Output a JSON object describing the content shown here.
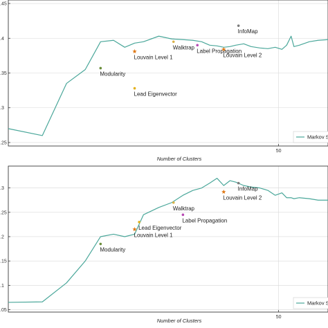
{
  "chart_data": [
    {
      "type": "line",
      "title": "",
      "xlabel": "Number of Clusters",
      "ylabel": "",
      "xscale": "log",
      "xlim": [
        2,
        90
      ],
      "ylim": [
        0.245,
        0.455
      ],
      "grid": true,
      "legend": "bottom-right",
      "x_tick_labels": [
        {
          "value": 50,
          "label": "50"
        }
      ],
      "y_tick_labels": [
        {
          "value": 0.25,
          "label": ".25"
        },
        {
          "value": 0.3,
          "label": ".3"
        },
        {
          "value": 0.35,
          "label": ".35"
        },
        {
          "value": 0.4,
          "label": ".4"
        },
        {
          "value": 0.45,
          "label": ".45"
        }
      ],
      "series": [
        {
          "name": "Markov S",
          "color": "#4aa79a",
          "x": [
            2,
            3,
            4,
            5,
            6,
            7,
            8,
            9,
            10,
            12,
            14,
            16,
            18,
            20,
            22,
            24,
            26,
            28,
            30,
            33,
            36,
            40,
            44,
            48,
            52,
            55,
            58,
            60,
            64,
            72,
            80,
            90
          ],
          "y": [
            0.27,
            0.26,
            0.335,
            0.355,
            0.395,
            0.397,
            0.387,
            0.393,
            0.395,
            0.403,
            0.399,
            0.398,
            0.397,
            0.395,
            0.39,
            0.389,
            0.387,
            0.388,
            0.39,
            0.392,
            0.388,
            0.386,
            0.385,
            0.387,
            0.384,
            0.39,
            0.403,
            0.388,
            0.39,
            0.395,
            0.397,
            0.398
          ]
        }
      ],
      "points": [
        {
          "label": "Modularity",
          "x": 6.0,
          "y": 0.357,
          "color": "#6b8e3a",
          "shape": "circle"
        },
        {
          "label": "Lead Eigenvector",
          "x": 9.0,
          "y": 0.328,
          "color": "#e3b21f",
          "shape": "circle"
        },
        {
          "label": "Louvain Level 1",
          "x": 9.0,
          "y": 0.381,
          "color": "#e07b1a",
          "shape": "star"
        },
        {
          "label": "Walktrap",
          "x": 14.3,
          "y": 0.395,
          "color": "#d8b24a",
          "shape": "circle"
        },
        {
          "label": "Label Propagation",
          "x": 19.0,
          "y": 0.39,
          "color": "#b84ab4",
          "shape": "circle"
        },
        {
          "label": "Louvain Level 2",
          "x": 26.0,
          "y": 0.384,
          "color": "#e07b1a",
          "shape": "star"
        },
        {
          "label": "InfoMap",
          "x": 31.0,
          "y": 0.418,
          "color": "#7a7a7a",
          "shape": "circle"
        }
      ]
    },
    {
      "type": "line",
      "title": "",
      "xlabel": "Number of Clusters",
      "ylabel": "",
      "xscale": "log",
      "xlim": [
        2,
        90
      ],
      "ylim": [
        0.045,
        0.345
      ],
      "grid": true,
      "legend": "bottom-right",
      "x_tick_labels": [
        {
          "value": 50,
          "label": "50"
        }
      ],
      "y_tick_labels": [
        {
          "value": 0.05,
          "label": ".05"
        },
        {
          "value": 0.1,
          "label": ".1"
        },
        {
          "value": 0.15,
          "label": ".15"
        },
        {
          "value": 0.2,
          "label": ".2"
        },
        {
          "value": 0.25,
          "label": ".25"
        },
        {
          "value": 0.3,
          "label": ".3"
        }
      ],
      "series": [
        {
          "name": "Markov S",
          "color": "#4aa79a",
          "x": [
            2,
            3,
            4,
            5,
            6,
            7,
            8,
            9,
            10,
            12,
            14,
            16,
            18,
            20,
            22,
            24,
            26,
            28,
            30,
            33,
            36,
            40,
            44,
            48,
            52,
            55,
            58,
            60,
            64,
            72,
            80,
            90
          ],
          "y": [
            0.065,
            0.066,
            0.105,
            0.15,
            0.2,
            0.205,
            0.2,
            0.205,
            0.245,
            0.26,
            0.27,
            0.285,
            0.295,
            0.3,
            0.31,
            0.32,
            0.305,
            0.315,
            0.312,
            0.305,
            0.302,
            0.3,
            0.295,
            0.285,
            0.29,
            0.28,
            0.28,
            0.278,
            0.28,
            0.278,
            0.275,
            0.275
          ]
        }
      ],
      "points": [
        {
          "label": "Modularity",
          "x": 6.0,
          "y": 0.185,
          "color": "#6b8e3a",
          "shape": "circle"
        },
        {
          "label": "Louvain Level 1",
          "x": 9.0,
          "y": 0.215,
          "color": "#e07b1a",
          "shape": "star"
        },
        {
          "label": "Lead Eigenvector",
          "x": 9.5,
          "y": 0.23,
          "color": "#e3b21f",
          "shape": "circle"
        },
        {
          "label": "Walktrap",
          "x": 14.3,
          "y": 0.27,
          "color": "#d8b24a",
          "shape": "circle"
        },
        {
          "label": "Label Propagation",
          "x": 16.0,
          "y": 0.245,
          "color": "#b84ab4",
          "shape": "circle"
        },
        {
          "label": "Louvain Level 2",
          "x": 26.0,
          "y": 0.292,
          "color": "#e07b1a",
          "shape": "star"
        },
        {
          "label": "InfoMap",
          "x": 31.0,
          "y": 0.31,
          "color": "#7a7a7a",
          "shape": "circle"
        }
      ]
    }
  ]
}
